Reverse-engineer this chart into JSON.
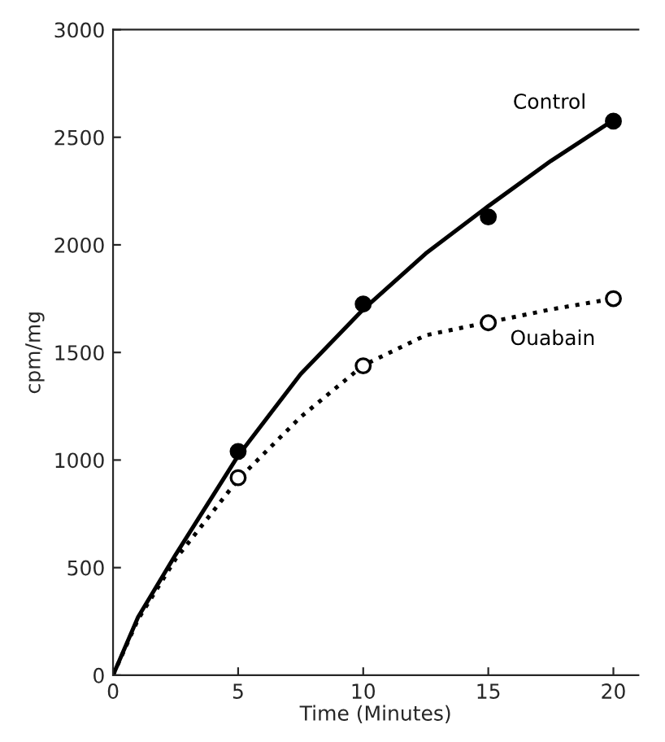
{
  "chart_data": {
    "type": "line",
    "xlabel": "Time (Minutes)",
    "ylabel": "cpm/mg",
    "xlim": [
      0,
      21
    ],
    "ylim": [
      0,
      3000
    ],
    "xticks": [
      0,
      5,
      10,
      15,
      20
    ],
    "yticks": [
      0,
      500,
      1000,
      1500,
      2000,
      2500,
      3000
    ],
    "grid": false,
    "legend": false,
    "series": [
      {
        "color": "#000000",
        "line_style": "solid",
        "marker": "none",
        "x": [
          0,
          1,
          2.5,
          5,
          7.5,
          10,
          12.5,
          15,
          17.5,
          20
        ],
        "values": [
          0,
          270,
          560,
          1020,
          1400,
          1700,
          1960,
          2180,
          2390,
          2580
        ]
      },
      {
        "color": "#000000",
        "line_style": "dotted",
        "marker": "none",
        "x": [
          0,
          1,
          2.5,
          5,
          7.5,
          10,
          12.5,
          15,
          17.5,
          20
        ],
        "values": [
          0,
          260,
          540,
          910,
          1200,
          1440,
          1580,
          1640,
          1700,
          1750
        ]
      },
      {
        "type": "scatter",
        "name": "Control",
        "color": "#000000",
        "marker": "circle",
        "x": [
          5,
          10,
          15,
          20
        ],
        "values": [
          1040,
          1725,
          2130,
          2575
        ]
      },
      {
        "type": "scatter",
        "name": "Ouabain",
        "color": "#000000",
        "marker": "circle",
        "x": [
          5,
          10,
          15,
          20
        ],
        "values": [
          918,
          1438,
          1638,
          1750
        ]
      }
    ]
  }
}
